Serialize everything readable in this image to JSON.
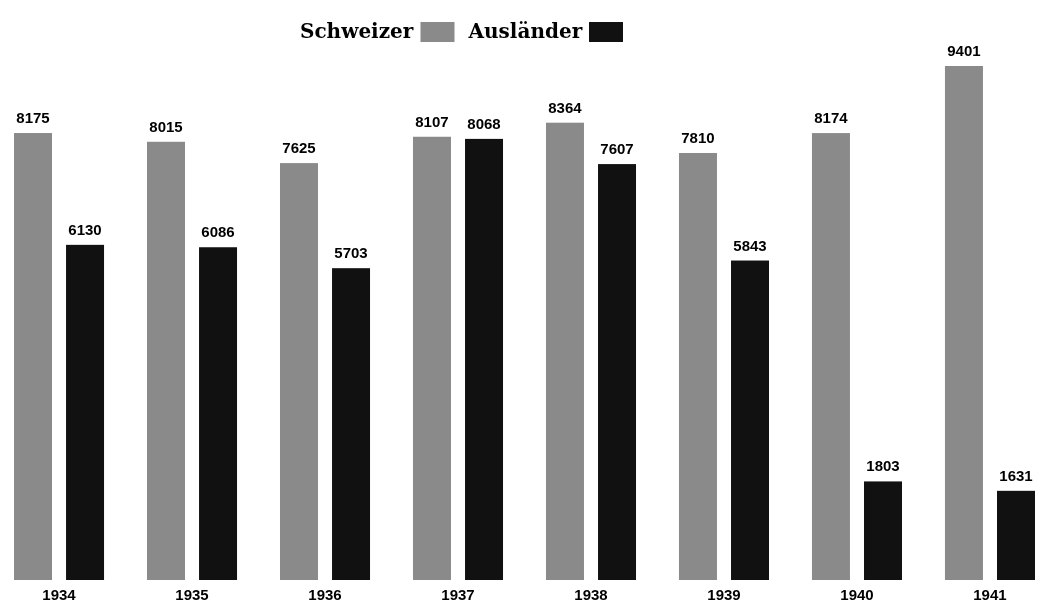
{
  "chart_data": {
    "type": "bar",
    "categories": [
      "1934",
      "1935",
      "1936",
      "1937",
      "1938",
      "1939",
      "1940",
      "1941"
    ],
    "series": [
      {
        "name": "Schweizer",
        "color": "#8a8a8a",
        "values": [
          8175,
          8015,
          7625,
          8107,
          8364,
          7810,
          8174,
          9401
        ]
      },
      {
        "name": "Ausländer",
        "color": "#111111",
        "values": [
          6130,
          6086,
          5703,
          8068,
          7607,
          5843,
          1803,
          1631
        ]
      }
    ],
    "data_labels": true,
    "legend": "top"
  }
}
